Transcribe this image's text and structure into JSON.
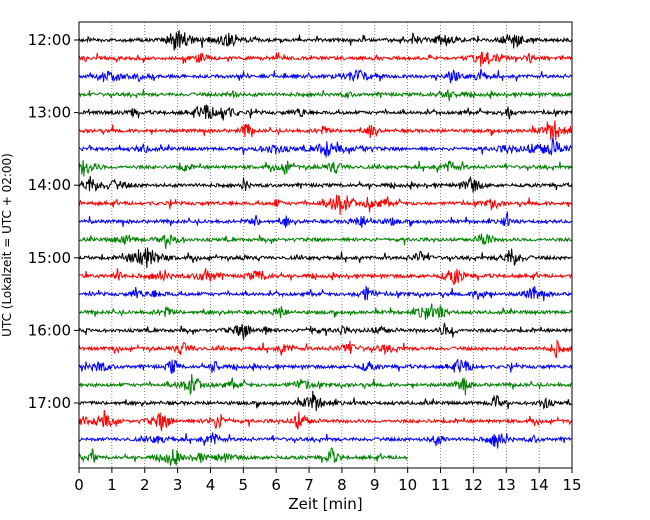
{
  "chart_data": {
    "type": "line",
    "title": "",
    "xlabel": "Zeit  [min]",
    "ylabel": "UTC (Lokalzeit = UTC + 02:00)",
    "xlim": [
      0,
      15
    ],
    "x_ticks": [
      "0",
      "1",
      "2",
      "3",
      "4",
      "5",
      "6",
      "7",
      "8",
      "9",
      "10",
      "11",
      "12",
      "13",
      "14",
      "15"
    ],
    "y_ticks": [
      "12:00",
      "13:00",
      "14:00",
      "15:00",
      "16:00",
      "17:00"
    ],
    "grid": "vertical dotted",
    "colors": [
      "#000000",
      "#ff0000",
      "#0000ff",
      "#008000"
    ],
    "series": [
      {
        "start": "12:00",
        "color": "#000000",
        "x_end": 15
      },
      {
        "start": "12:15",
        "color": "#ff0000",
        "x_end": 15
      },
      {
        "start": "12:30",
        "color": "#0000ff",
        "x_end": 15
      },
      {
        "start": "12:45",
        "color": "#008000",
        "x_end": 15
      },
      {
        "start": "13:00",
        "color": "#000000",
        "x_end": 15
      },
      {
        "start": "13:15",
        "color": "#ff0000",
        "x_end": 15
      },
      {
        "start": "13:30",
        "color": "#0000ff",
        "x_end": 15
      },
      {
        "start": "13:45",
        "color": "#008000",
        "x_end": 15
      },
      {
        "start": "14:00",
        "color": "#000000",
        "x_end": 15
      },
      {
        "start": "14:15",
        "color": "#ff0000",
        "x_end": 15
      },
      {
        "start": "14:30",
        "color": "#0000ff",
        "x_end": 15
      },
      {
        "start": "14:45",
        "color": "#008000",
        "x_end": 15
      },
      {
        "start": "15:00",
        "color": "#000000",
        "x_end": 15
      },
      {
        "start": "15:15",
        "color": "#ff0000",
        "x_end": 15
      },
      {
        "start": "15:30",
        "color": "#0000ff",
        "x_end": 15
      },
      {
        "start": "15:45",
        "color": "#008000",
        "x_end": 15
      },
      {
        "start": "16:00",
        "color": "#000000",
        "x_end": 15
      },
      {
        "start": "16:15",
        "color": "#ff0000",
        "x_end": 15
      },
      {
        "start": "16:30",
        "color": "#0000ff",
        "x_end": 15
      },
      {
        "start": "16:45",
        "color": "#008000",
        "x_end": 15
      },
      {
        "start": "17:00",
        "color": "#000000",
        "x_end": 15
      },
      {
        "start": "17:15",
        "color": "#ff0000",
        "x_end": 15
      },
      {
        "start": "17:30",
        "color": "#0000ff",
        "x_end": 15
      },
      {
        "start": "17:45",
        "color": "#008000",
        "x_end": 10
      }
    ]
  }
}
